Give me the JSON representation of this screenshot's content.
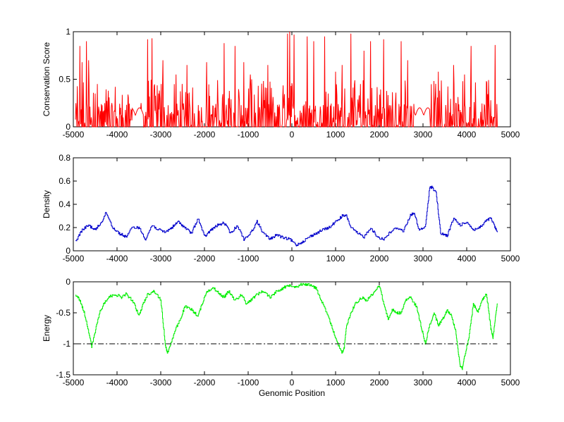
{
  "chart_data": [
    {
      "type": "line",
      "ylabel": "Conservation Score",
      "xlim": [
        -5000,
        5000
      ],
      "ylim": [
        0,
        1
      ],
      "xticks": [
        -5000,
        -4000,
        -3000,
        -2000,
        -1000,
        0,
        1000,
        2000,
        3000,
        4000,
        5000
      ],
      "yticks": [
        0,
        0.5,
        1
      ],
      "color": "#ff0000",
      "grid": false,
      "series_style": "spiky",
      "x_range": [
        -4950,
        4700
      ],
      "spikes": [
        {
          "x": -4850,
          "y": 0.85
        },
        {
          "x": -4800,
          "y": 0.68
        },
        {
          "x": -4700,
          "y": 0.9
        },
        {
          "x": -4650,
          "y": 0.7
        },
        {
          "x": -4500,
          "y": 0.35
        },
        {
          "x": -4450,
          "y": 0.45
        },
        {
          "x": -4200,
          "y": 0.38
        },
        {
          "x": -3450,
          "y": 0.25
        },
        {
          "x": -3300,
          "y": 0.92
        },
        {
          "x": -3200,
          "y": 0.93
        },
        {
          "x": -3050,
          "y": 0.35
        },
        {
          "x": -2950,
          "y": 0.7
        },
        {
          "x": -2650,
          "y": 0.55
        },
        {
          "x": -2400,
          "y": 0.65
        },
        {
          "x": -1950,
          "y": 0.68
        },
        {
          "x": -1550,
          "y": 0.88
        },
        {
          "x": -1450,
          "y": 0.3
        },
        {
          "x": -1300,
          "y": 0.85
        },
        {
          "x": -1100,
          "y": 0.68
        },
        {
          "x": -950,
          "y": 0.55
        },
        {
          "x": -550,
          "y": 0.65
        },
        {
          "x": -100,
          "y": 0.98
        },
        {
          "x": -50,
          "y": 1.0
        },
        {
          "x": 50,
          "y": 0.97
        },
        {
          "x": 350,
          "y": 0.95
        },
        {
          "x": 500,
          "y": 0.9
        },
        {
          "x": 750,
          "y": 0.95
        },
        {
          "x": 1000,
          "y": 0.58
        },
        {
          "x": 1150,
          "y": 0.65
        },
        {
          "x": 1350,
          "y": 0.98
        },
        {
          "x": 1650,
          "y": 0.8
        },
        {
          "x": 1800,
          "y": 0.9
        },
        {
          "x": 2100,
          "y": 0.92
        },
        {
          "x": 2500,
          "y": 0.9
        },
        {
          "x": 2650,
          "y": 0.7
        },
        {
          "x": 3350,
          "y": 0.58
        },
        {
          "x": 3700,
          "y": 0.65
        },
        {
          "x": 3950,
          "y": 0.55
        },
        {
          "x": 4100,
          "y": 0.85
        },
        {
          "x": 4450,
          "y": 0.48
        },
        {
          "x": 4650,
          "y": 0.86
        }
      ],
      "quiet_ranges": [
        [
          -3650,
          -3400
        ],
        [
          2800,
          3150
        ]
      ]
    },
    {
      "type": "line",
      "ylabel": "Density",
      "xlim": [
        -5000,
        5000
      ],
      "ylim": [
        0,
        0.8
      ],
      "xticks": [
        -5000,
        -4000,
        -3000,
        -2000,
        -1000,
        0,
        1000,
        2000,
        3000,
        4000,
        5000
      ],
      "yticks": [
        0,
        0.2,
        0.4,
        0.6,
        0.8
      ],
      "color": "#0000cc",
      "grid": false,
      "x": [
        -4950,
        -4800,
        -4650,
        -4500,
        -4350,
        -4250,
        -4100,
        -3950,
        -3800,
        -3650,
        -3500,
        -3350,
        -3200,
        -3050,
        -2900,
        -2750,
        -2600,
        -2450,
        -2300,
        -2150,
        -2000,
        -1850,
        -1700,
        -1550,
        -1400,
        -1250,
        -1100,
        -950,
        -800,
        -650,
        -500,
        -350,
        -200,
        -50,
        100,
        250,
        400,
        550,
        700,
        850,
        1000,
        1150,
        1250,
        1350,
        1500,
        1650,
        1800,
        1950,
        2100,
        2250,
        2400,
        2550,
        2700,
        2800,
        2900,
        3050,
        3150,
        3200,
        3300,
        3400,
        3550,
        3700,
        3850,
        4000,
        4150,
        4300,
        4450,
        4550,
        4650,
        4700
      ],
      "y": [
        0.08,
        0.18,
        0.22,
        0.18,
        0.25,
        0.33,
        0.2,
        0.15,
        0.12,
        0.2,
        0.2,
        0.1,
        0.22,
        0.18,
        0.16,
        0.2,
        0.25,
        0.2,
        0.15,
        0.28,
        0.12,
        0.18,
        0.22,
        0.24,
        0.15,
        0.22,
        0.1,
        0.15,
        0.25,
        0.15,
        0.1,
        0.14,
        0.11,
        0.1,
        0.05,
        0.08,
        0.12,
        0.15,
        0.18,
        0.2,
        0.25,
        0.3,
        0.3,
        0.2,
        0.15,
        0.12,
        0.2,
        0.12,
        0.1,
        0.16,
        0.2,
        0.17,
        0.3,
        0.33,
        0.18,
        0.2,
        0.54,
        0.55,
        0.5,
        0.15,
        0.13,
        0.28,
        0.22,
        0.25,
        0.18,
        0.2,
        0.26,
        0.28,
        0.2,
        0.16
      ]
    },
    {
      "type": "line",
      "ylabel": "Energy",
      "xlabel": "Genomic Position",
      "xlim": [
        -5000,
        5000
      ],
      "ylim": [
        -1.5,
        0
      ],
      "xticks": [
        -5000,
        -4000,
        -3000,
        -2000,
        -1000,
        0,
        1000,
        2000,
        3000,
        4000,
        5000
      ],
      "yticks": [
        -1.5,
        -1,
        -0.5,
        0
      ],
      "ytick_labels": [
        "-1.5",
        "-1",
        "-0.5",
        "0"
      ],
      "color": "#00ee00",
      "grid": false,
      "x": [
        -4950,
        -4850,
        -4750,
        -4650,
        -4580,
        -4500,
        -4400,
        -4300,
        -4200,
        -4050,
        -3900,
        -3800,
        -3650,
        -3500,
        -3400,
        -3300,
        -3150,
        -3000,
        -2900,
        -2850,
        -2750,
        -2650,
        -2550,
        -2450,
        -2300,
        -2150,
        -2050,
        -1950,
        -1800,
        -1650,
        -1550,
        -1450,
        -1300,
        -1150,
        -1050,
        -950,
        -800,
        -650,
        -500,
        -350,
        -200,
        -50,
        100,
        250,
        400,
        550,
        700,
        850,
        950,
        1050,
        1150,
        1200,
        1250,
        1350,
        1450,
        1600,
        1700,
        1850,
        2000,
        2100,
        2200,
        2300,
        2400,
        2500,
        2600,
        2700,
        2850,
        2950,
        3050,
        3150,
        3250,
        3350,
        3450,
        3550,
        3650,
        3750,
        3800,
        3850,
        3900,
        3950,
        4050,
        4150,
        4250,
        4350,
        4450,
        4550,
        4600,
        4650,
        4700
      ],
      "y": [
        -0.2,
        -0.3,
        -0.5,
        -0.8,
        -1.05,
        -0.8,
        -0.5,
        -0.35,
        -0.25,
        -0.2,
        -0.25,
        -0.2,
        -0.3,
        -0.55,
        -0.35,
        -0.2,
        -0.15,
        -0.3,
        -1.0,
        -1.15,
        -0.95,
        -0.75,
        -0.6,
        -0.4,
        -0.45,
        -0.55,
        -0.35,
        -0.15,
        -0.1,
        -0.2,
        -0.25,
        -0.15,
        -0.3,
        -0.2,
        -0.35,
        -0.3,
        -0.2,
        -0.15,
        -0.25,
        -0.15,
        -0.1,
        -0.05,
        -0.08,
        -0.03,
        -0.05,
        -0.1,
        -0.35,
        -0.6,
        -0.8,
        -1.0,
        -1.15,
        -1.05,
        -0.7,
        -0.5,
        -0.35,
        -0.25,
        -0.3,
        -0.2,
        -0.05,
        -0.35,
        -0.6,
        -0.45,
        -0.5,
        -0.5,
        -0.3,
        -0.25,
        -0.4,
        -0.7,
        -1.0,
        -0.7,
        -0.5,
        -0.7,
        -0.6,
        -0.45,
        -0.55,
        -0.8,
        -1.1,
        -1.35,
        -1.4,
        -1.2,
        -0.9,
        -0.35,
        -0.5,
        -0.3,
        -0.2,
        -0.75,
        -0.9,
        -0.6,
        -0.35
      ],
      "threshold": -1,
      "threshold_color": "#000000"
    }
  ]
}
